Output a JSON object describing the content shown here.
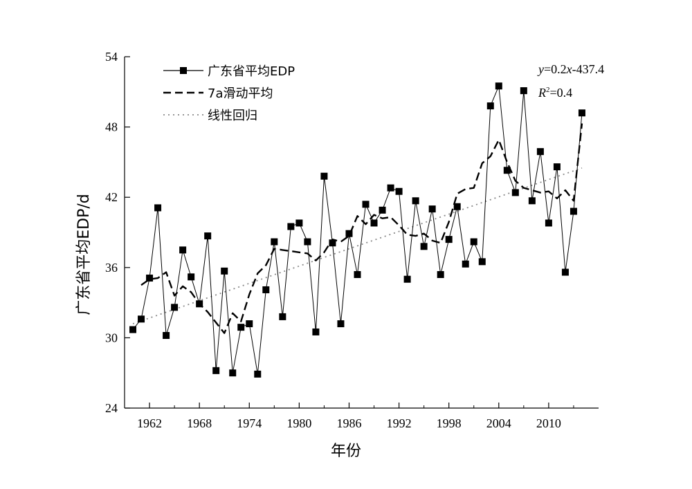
{
  "chart_data": {
    "type": "line",
    "xlabel": "年份",
    "ylabel": "广东省平均EDP/d",
    "xlim": [
      1959,
      2016
    ],
    "ylim": [
      24,
      54
    ],
    "xticks": [
      "1962",
      "1968",
      "1974",
      "1980",
      "1986",
      "1992",
      "1998",
      "2004",
      "2010"
    ],
    "yticks": [
      "24",
      "30",
      "36",
      "42",
      "48",
      "54"
    ],
    "legend_position": "top-left",
    "grid": false,
    "equation": {
      "line1_y": "y",
      "line1_rest": "=0.2",
      "line1_x": "x",
      "line1_tail": "-437.4",
      "line2_r": "R",
      "line2_sup": "2",
      "line2_tail": "=0.4"
    },
    "series": [
      {
        "name": "广东省平均EDP",
        "style": "solid-square",
        "color": "#000000",
        "x": [
          1960,
          1961,
          1962,
          1963,
          1964,
          1965,
          1966,
          1967,
          1968,
          1969,
          1970,
          1971,
          1972,
          1973,
          1974,
          1975,
          1976,
          1977,
          1978,
          1979,
          1980,
          1981,
          1982,
          1983,
          1984,
          1985,
          1986,
          1987,
          1988,
          1989,
          1990,
          1991,
          1992,
          1993,
          1994,
          1995,
          1996,
          1997,
          1998,
          1999,
          2000,
          2001,
          2002,
          2003,
          2004,
          2005,
          2006,
          2007,
          2008,
          2009,
          2010,
          2011,
          2012,
          2013,
          2014
        ],
        "y": [
          30.7,
          31.6,
          35.1,
          41.1,
          30.2,
          32.6,
          37.5,
          35.2,
          32.9,
          38.7,
          27.2,
          35.7,
          27.0,
          30.9,
          31.2,
          26.9,
          34.1,
          38.2,
          31.8,
          39.5,
          39.8,
          38.2,
          30.5,
          43.8,
          38.1,
          31.2,
          38.9,
          35.4,
          41.4,
          39.8,
          40.9,
          42.8,
          42.5,
          35.0,
          41.7,
          37.8,
          41.0,
          35.4,
          38.4,
          41.2,
          36.3,
          38.2,
          36.5,
          49.8,
          51.5,
          44.3,
          42.4,
          51.1,
          41.7,
          45.9,
          39.8,
          44.6,
          35.6,
          40.8,
          49.2
        ]
      },
      {
        "name": "7a滑动平均",
        "style": "dashed",
        "color": "#000000",
        "x": [
          1961,
          1962,
          1963,
          1964,
          1965,
          1966,
          1967,
          1968,
          1969,
          1970,
          1971,
          1972,
          1973,
          1974,
          1975,
          1976,
          1977,
          1978,
          1979,
          1980,
          1981,
          1982,
          1983,
          1984,
          1985,
          1986,
          1987,
          1988,
          1989,
          1990,
          1991,
          1992,
          1993,
          1994,
          1995,
          1996,
          1997,
          1998,
          1999,
          2000,
          2001,
          2002,
          2003,
          2004,
          2005,
          2006,
          2007,
          2008,
          2009,
          2010,
          2011,
          2012,
          2013,
          2014
        ],
        "y": [
          34.5,
          35.0,
          35.1,
          35.6,
          33.6,
          34.4,
          33.9,
          32.9,
          32.2,
          31.3,
          30.4,
          32.1,
          31.4,
          33.7,
          35.5,
          36.2,
          37.6,
          37.5,
          37.4,
          37.3,
          37.2,
          36.6,
          37.3,
          38.4,
          38.2,
          38.7,
          40.4,
          39.7,
          40.5,
          40.2,
          40.3,
          39.6,
          38.8,
          38.7,
          38.9,
          38.3,
          38.1,
          39.9,
          42.3,
          42.7,
          42.8,
          44.9,
          45.5,
          46.9,
          45.0,
          43.4,
          42.8,
          42.6,
          42.4,
          42.5,
          41.9,
          42.6,
          41.7,
          48.3
        ]
      },
      {
        "name": "线性回归",
        "style": "dotted",
        "color": "#888888",
        "x": [
          1960,
          2014
        ],
        "y": [
          31.2,
          44.5
        ]
      }
    ]
  }
}
